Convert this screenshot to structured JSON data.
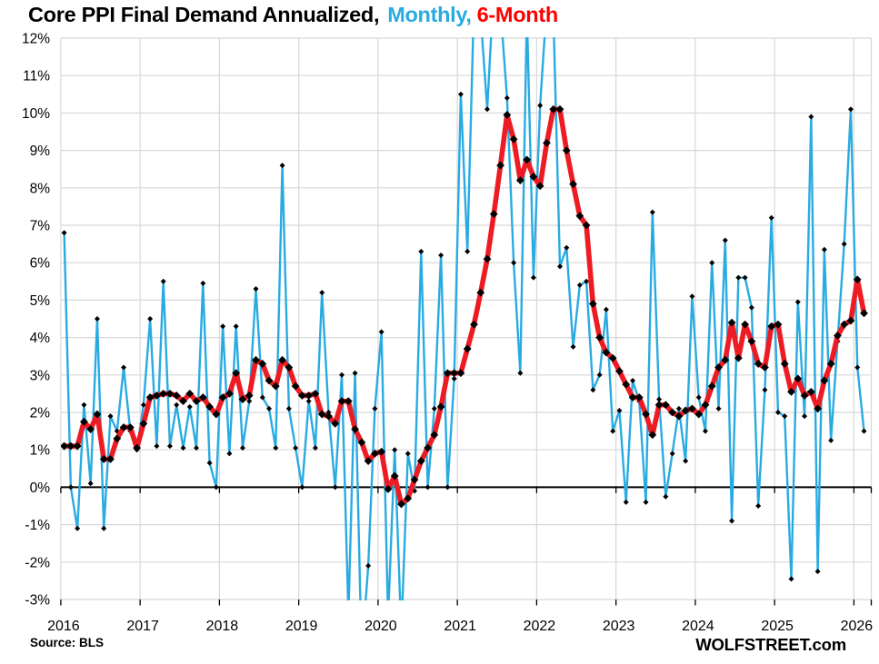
{
  "title": {
    "main": "Core PPI Final Demand Annualized,",
    "monthly": "Monthly,",
    "six_month": "6-Month"
  },
  "footer": {
    "source": "Source: BLS",
    "watermark": "WOLFSTREET.com"
  },
  "colors": {
    "monthly_line": "#29abe2",
    "six_month_line": "#ed1c24",
    "title_monthly": "#29abe2",
    "title_six_month": "#fe0000",
    "marker": "#000000",
    "grid": "#d8d8d8",
    "zero_line": "#000000",
    "text": "#000000"
  },
  "chart_data": {
    "type": "line",
    "title": "Core PPI Final Demand Annualized, Monthly, 6-Month",
    "x_start": "2016-01",
    "x_end": "2026-02",
    "points_per_year": 12,
    "ylim": [
      -3,
      12
    ],
    "y_tick_step": 1,
    "grid": true,
    "y_tick_labels": [
      "12%",
      "11%",
      "10%",
      "9%",
      "8%",
      "7%",
      "6%",
      "5%",
      "4%",
      "3%",
      "2%",
      "1%",
      "0%",
      "-1%",
      "-2%",
      "-3%"
    ],
    "x_tick_labels": [
      "2016",
      "2017",
      "2018",
      "2019",
      "2020",
      "2021",
      "2022",
      "2023",
      "2024",
      "2025",
      "2026"
    ],
    "note_clipping": "values above 12 or below -3 are drawn clipped at the plot edge",
    "series": [
      {
        "name": "Monthly",
        "color": "#29abe2",
        "marker": "black-diamond",
        "values": [
          6.8,
          0.0,
          -1.1,
          2.2,
          0.1,
          4.5,
          -1.1,
          1.9,
          1.5,
          3.2,
          1.5,
          1.0,
          2.2,
          4.5,
          1.1,
          5.5,
          1.1,
          2.2,
          1.05,
          2.15,
          1.05,
          5.45,
          0.65,
          0.0,
          4.3,
          0.9,
          4.3,
          1.05,
          2.3,
          5.3,
          2.4,
          2.1,
          1.05,
          8.6,
          2.1,
          1.05,
          0.0,
          2.3,
          1.05,
          5.2,
          2.0,
          0.0,
          3.0,
          -3.4,
          3.05,
          -4.5,
          -2.1,
          2.1,
          4.15,
          -3.5,
          1.0,
          -3.9,
          0.9,
          -0.1,
          6.3,
          0.0,
          2.1,
          6.2,
          0.0,
          2.9,
          10.5,
          6.3,
          13.0,
          12.6,
          10.1,
          13.4,
          12.8,
          10.4,
          6.0,
          3.05,
          12.7,
          5.6,
          10.2,
          12.9,
          12.7,
          5.9,
          6.4,
          3.75,
          5.4,
          5.5,
          2.6,
          3.0,
          4.75,
          1.5,
          2.05,
          -0.4,
          2.85,
          2.3,
          -0.4,
          7.35,
          2.35,
          -0.25,
          0.9,
          2.1,
          0.7,
          5.1,
          2.4,
          1.5,
          6.0,
          2.1,
          6.6,
          -0.9,
          5.6,
          5.6,
          4.8,
          -0.5,
          2.6,
          7.2,
          2.0,
          1.9,
          -2.45,
          4.95,
          1.9,
          9.9,
          -2.25,
          6.35,
          1.25,
          3.9,
          6.5,
          10.1,
          3.2,
          1.5
        ]
      },
      {
        "name": "6-Month",
        "color": "#ed1c24",
        "marker": "black-diamond",
        "values": [
          1.1,
          1.1,
          1.1,
          1.75,
          1.55,
          1.95,
          0.75,
          0.75,
          1.3,
          1.6,
          1.6,
          1.05,
          1.7,
          2.4,
          2.45,
          2.5,
          2.5,
          2.45,
          2.3,
          2.5,
          2.3,
          2.4,
          2.15,
          1.95,
          2.4,
          2.5,
          3.05,
          2.35,
          2.45,
          3.4,
          3.3,
          2.85,
          2.7,
          3.4,
          3.2,
          2.7,
          2.45,
          2.45,
          2.5,
          1.95,
          1.9,
          1.7,
          2.3,
          2.3,
          1.55,
          1.2,
          0.7,
          0.9,
          0.95,
          -0.05,
          0.3,
          -0.45,
          -0.3,
          0.2,
          0.7,
          1.05,
          1.4,
          2.15,
          3.05,
          3.05,
          3.05,
          3.7,
          4.35,
          5.2,
          6.1,
          7.3,
          8.6,
          9.95,
          9.3,
          8.2,
          8.75,
          8.3,
          8.05,
          9.2,
          10.1,
          10.1,
          9.0,
          8.1,
          7.25,
          7.0,
          4.9,
          4.0,
          3.6,
          3.45,
          3.1,
          2.75,
          2.4,
          2.4,
          1.95,
          1.4,
          2.2,
          2.2,
          2.0,
          1.9,
          2.05,
          2.1,
          1.95,
          2.2,
          2.7,
          3.2,
          3.4,
          4.4,
          3.45,
          4.35,
          3.9,
          3.3,
          3.2,
          4.3,
          4.35,
          3.3,
          2.55,
          2.9,
          2.45,
          2.55,
          2.1,
          2.85,
          3.3,
          4.05,
          4.35,
          4.45,
          5.55,
          4.65
        ]
      }
    ]
  }
}
